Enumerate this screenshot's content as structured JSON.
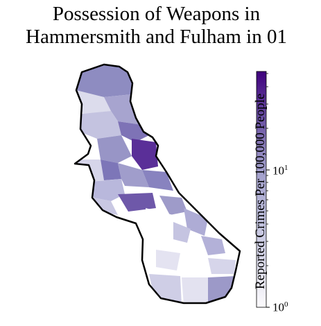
{
  "title_line1": "Possession of Weapons in",
  "title_line2": "Hammersmith and Fulham in 01",
  "colorbar": {
    "label": "Reported Crimes Per 100,000 People",
    "scale": "log",
    "range": [
      1,
      60
    ],
    "ticks": [
      {
        "base": "10",
        "exp": "0",
        "value": 1
      },
      {
        "base": "10",
        "exp": "1",
        "value": 10
      }
    ],
    "color_low": "#fcfbfd",
    "color_high": "#3f007d"
  },
  "colors": {
    "boundary": "#000000",
    "border": "#000000"
  }
}
